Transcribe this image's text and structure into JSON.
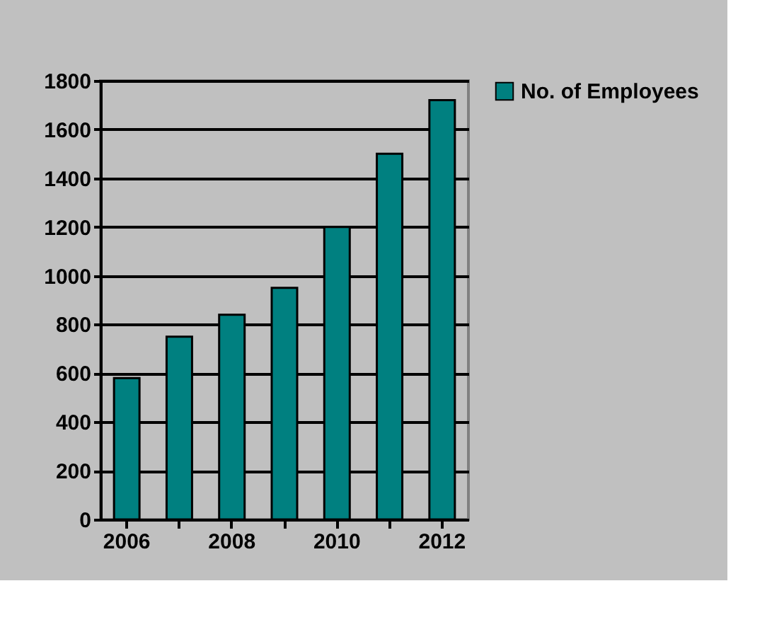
{
  "chart_data": {
    "type": "bar",
    "categories": [
      "2006",
      null,
      "2008",
      null,
      "2010",
      null,
      "2012"
    ],
    "series": [
      {
        "name": "No. of Employees",
        "color": "#008080",
        "values": [
          580,
          750,
          840,
          950,
          1200,
          1500,
          1720
        ]
      }
    ],
    "ylim": [
      0,
      1800
    ],
    "yticks": [
      0,
      200,
      400,
      600,
      800,
      1000,
      1200,
      1400,
      1600,
      1800
    ],
    "grid": "y",
    "legend": "right"
  }
}
